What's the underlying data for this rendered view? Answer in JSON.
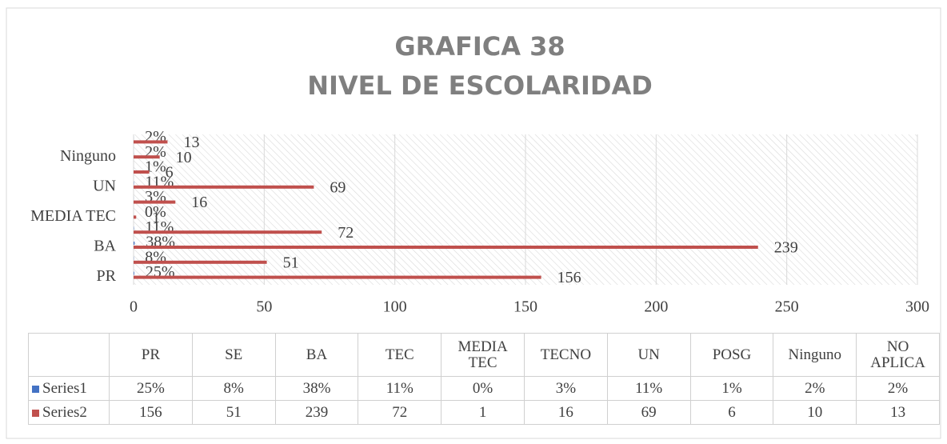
{
  "chart_data": {
    "type": "bar",
    "orientation": "horizontal",
    "title": [
      "GRAFICA 38",
      "NIVEL DE ESCOLARIDAD"
    ],
    "categories": [
      "PR",
      "SE",
      "BA",
      "TEC",
      "MEDIA TEC",
      "TECNO",
      "UN",
      "POSG",
      "Ninguno",
      "NO APLICA"
    ],
    "series": [
      {
        "name": "Series1",
        "color": "#4472c4",
        "values": [
          0.25,
          0.08,
          0.38,
          0.11,
          0,
          0.03,
          0.11,
          0.01,
          0.02,
          0.02
        ],
        "value_labels": [
          "25%",
          "8%",
          "38%",
          "11%",
          "0%",
          "3%",
          "11%",
          "1%",
          "2%",
          "2%"
        ]
      },
      {
        "name": "Series2",
        "color": "#c0504d",
        "values": [
          156,
          51,
          239,
          72,
          1,
          16,
          69,
          6,
          10,
          13
        ]
      }
    ],
    "xlim": [
      0,
      300
    ],
    "xticks": [
      0,
      50,
      100,
      150,
      200,
      250,
      300
    ],
    "grid": true,
    "data_table": true
  }
}
